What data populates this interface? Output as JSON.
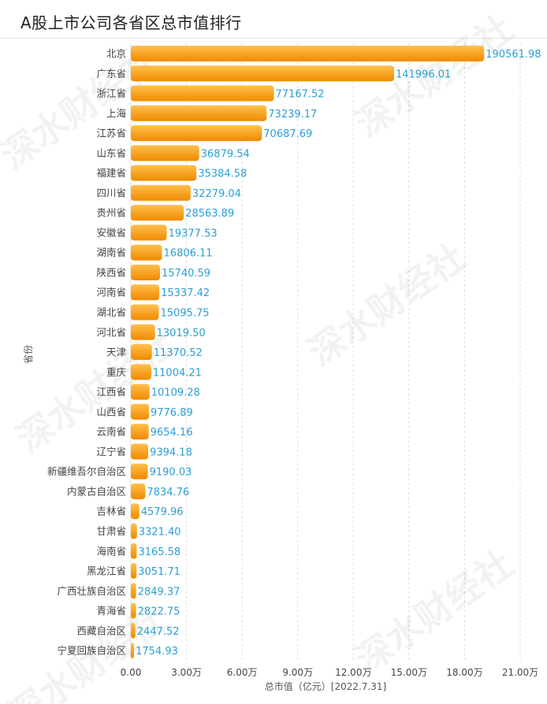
{
  "title": "A股上市公司各省区总市值排行",
  "watermark_text": "深水财经社",
  "colors": {
    "bar_light": "#ffc04d",
    "bar_dark": "#f08a00",
    "value_label": "#2a9fd6",
    "grid": "#dddddd",
    "axis_text": "#444444",
    "title": "#222222"
  },
  "chart_data": {
    "type": "bar",
    "orientation": "horizontal",
    "title": "A股上市公司各省区总市值排行",
    "xlabel": "总市值（亿元）[2022.7.31]",
    "ylabel": "省份",
    "xlim": [
      0,
      210000
    ],
    "xticks": [
      {
        "value": 0,
        "label": "0.00"
      },
      {
        "value": 30000,
        "label": "3.00万"
      },
      {
        "value": 60000,
        "label": "6.00万"
      },
      {
        "value": 90000,
        "label": "9.00万"
      },
      {
        "value": 120000,
        "label": "12.00万"
      },
      {
        "value": 150000,
        "label": "15.00万"
      },
      {
        "value": 180000,
        "label": "18.00万"
      },
      {
        "value": 210000,
        "label": "21.00万"
      }
    ],
    "categories": [
      "北京",
      "广东省",
      "浙江省",
      "上海",
      "江苏省",
      "山东省",
      "福建省",
      "四川省",
      "贵州省",
      "安徽省",
      "湖南省",
      "陕西省",
      "河南省",
      "湖北省",
      "河北省",
      "天津",
      "重庆",
      "江西省",
      "山西省",
      "云南省",
      "辽宁省",
      "新疆维吾尔自治区",
      "内蒙古自治区",
      "吉林省",
      "甘肃省",
      "海南省",
      "黑龙江省",
      "广西壮族自治区",
      "青海省",
      "西藏自治区",
      "宁夏回族自治区"
    ],
    "values": [
      190561.98,
      141996.01,
      77167.52,
      73239.17,
      70687.69,
      36879.54,
      35384.58,
      32279.04,
      28563.89,
      19377.53,
      16806.11,
      15740.59,
      15337.42,
      15095.75,
      13019.5,
      11370.52,
      11004.21,
      10109.28,
      9776.89,
      9654.16,
      9394.18,
      9190.03,
      7834.76,
      4579.96,
      3321.4,
      3165.58,
      3051.71,
      2849.37,
      2822.75,
      2447.52,
      1754.93
    ],
    "value_labels": [
      "190561.98",
      "141996.01",
      "77167.52",
      "73239.17",
      "70687.69",
      "36879.54",
      "35384.58",
      "32279.04",
      "28563.89",
      "19377.53",
      "16806.11",
      "15740.59",
      "15337.42",
      "15095.75",
      "13019.50",
      "11370.52",
      "11004.21",
      "10109.28",
      "9776.89",
      "9654.16",
      "9394.18",
      "9190.03",
      "7834.76",
      "4579.96",
      "3321.40",
      "3165.58",
      "3051.71",
      "2849.37",
      "2822.75",
      "2447.52",
      "1754.93"
    ],
    "grid": true,
    "legend": "none"
  }
}
